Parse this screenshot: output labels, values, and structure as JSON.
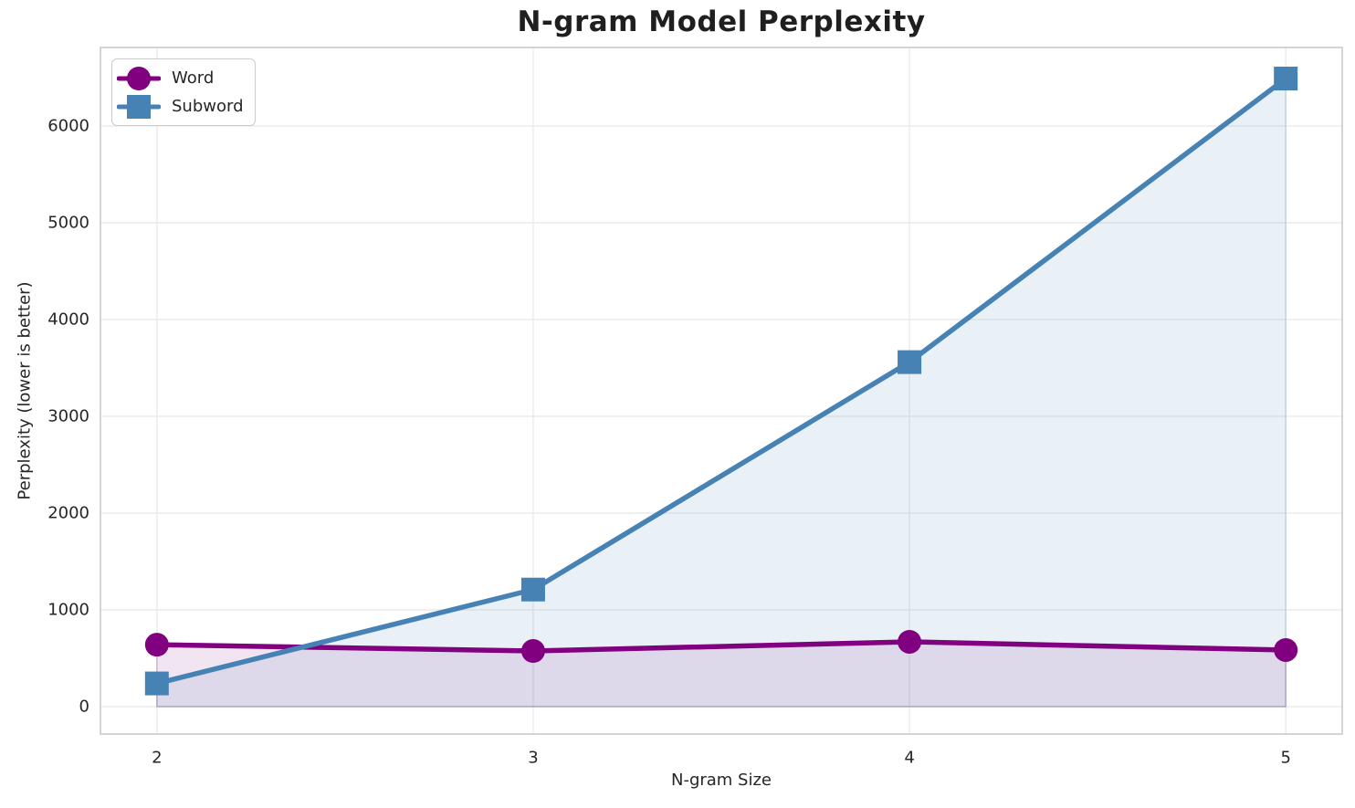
{
  "chart_data": {
    "type": "line",
    "title": "N-gram Model Perplexity",
    "xlabel": "N-gram Size",
    "ylabel": "Perplexity (lower is better)",
    "x": [
      2,
      3,
      4,
      5
    ],
    "series": [
      {
        "name": "Word",
        "color": "#800080",
        "marker": "circle",
        "fill_alpha": 0.1,
        "values": [
          640,
          575,
          670,
          585
        ]
      },
      {
        "name": "Subword",
        "color": "#4682B4",
        "marker": "square",
        "fill_alpha": 0.12,
        "values": [
          240,
          1210,
          3560,
          6490
        ]
      }
    ],
    "xticks": [
      2,
      3,
      4,
      5
    ],
    "yticks": [
      0,
      1000,
      2000,
      3000,
      4000,
      5000,
      6000
    ],
    "xlim": [
      1.85,
      5.15
    ],
    "ylim": [
      -283,
      6811
    ],
    "grid": true,
    "fill_to_zero": true,
    "legend_position": "upper left",
    "style": {
      "grid_color": "#ececec",
      "spine_color": "#d4d4d4",
      "text_color": "#262626"
    }
  }
}
